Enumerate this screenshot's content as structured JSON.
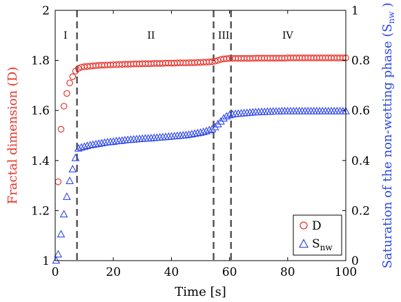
{
  "chart_data": {
    "type": "scatter",
    "xlabel": "Time [s]",
    "ylabel_left": "Fractal dimension (D)",
    "ylabel_right": "Saturation of the non-wetting phase (S",
    "ylabel_right_sub": "nw",
    "ylabel_right_close": " )",
    "xlim": [
      0,
      100
    ],
    "ylim_left": [
      1,
      2
    ],
    "ylim_right": [
      0,
      1
    ],
    "x_ticks": [
      "0",
      "20",
      "40",
      "60",
      "80",
      "100"
    ],
    "y_ticks_left": [
      "1",
      "1.2",
      "1.4",
      "1.6",
      "1.8",
      "2"
    ],
    "y_ticks_right": [
      "0",
      "0.2",
      "0.4",
      "0.6",
      "0.8",
      "1"
    ],
    "colors": {
      "D": "#e8322b",
      "Snw": "#2b45e8",
      "left_axis_label": "#e8322b",
      "right_axis_label": "#2b45e8",
      "divider": "#555555"
    },
    "dividers": [
      7.5,
      54.5,
      60.5
    ],
    "regions": [
      {
        "label": "I",
        "x": 3.5
      },
      {
        "label": "II",
        "x": 33
      },
      {
        "label": "III",
        "x": 58
      },
      {
        "label": "IV",
        "x": 80
      }
    ],
    "legend": {
      "position": "bottom-right",
      "entries": [
        {
          "label": "D",
          "sub": "",
          "marker": "circle"
        },
        {
          "label": "S",
          "sub": "nw",
          "marker": "triangle"
        }
      ]
    },
    "series": [
      {
        "name": "D",
        "axis": "left",
        "marker": "circle",
        "points": [
          [
            1,
            1.315
          ],
          [
            2,
            1.525
          ],
          [
            3,
            1.617
          ],
          [
            4,
            1.668
          ],
          [
            5,
            1.71
          ],
          [
            6,
            1.735
          ],
          [
            7,
            1.757
          ],
          [
            8,
            1.768
          ],
          [
            9,
            1.773
          ],
          [
            10,
            1.775
          ],
          [
            11,
            1.776
          ],
          [
            12,
            1.777
          ],
          [
            13,
            1.778
          ],
          [
            14,
            1.779
          ],
          [
            15,
            1.78
          ],
          [
            16,
            1.781
          ],
          [
            17,
            1.781
          ],
          [
            18,
            1.782
          ],
          [
            19,
            1.782
          ],
          [
            20,
            1.783
          ],
          [
            21,
            1.783
          ],
          [
            22,
            1.784
          ],
          [
            23,
            1.784
          ],
          [
            24,
            1.785
          ],
          [
            25,
            1.785
          ],
          [
            26,
            1.785
          ],
          [
            27,
            1.786
          ],
          [
            28,
            1.786
          ],
          [
            29,
            1.786
          ],
          [
            30,
            1.787
          ],
          [
            31,
            1.787
          ],
          [
            32,
            1.787
          ],
          [
            33,
            1.787
          ],
          [
            34,
            1.788
          ],
          [
            35,
            1.788
          ],
          [
            36,
            1.788
          ],
          [
            37,
            1.788
          ],
          [
            38,
            1.789
          ],
          [
            39,
            1.789
          ],
          [
            40,
            1.789
          ],
          [
            41,
            1.789
          ],
          [
            42,
            1.79
          ],
          [
            43,
            1.79
          ],
          [
            44,
            1.79
          ],
          [
            45,
            1.79
          ],
          [
            46,
            1.791
          ],
          [
            47,
            1.791
          ],
          [
            48,
            1.791
          ],
          [
            49,
            1.792
          ],
          [
            50,
            1.792
          ],
          [
            51,
            1.793
          ],
          [
            52,
            1.793
          ],
          [
            53,
            1.794
          ],
          [
            54,
            1.795
          ],
          [
            55,
            1.797
          ],
          [
            56,
            1.8
          ],
          [
            57,
            1.804
          ],
          [
            58,
            1.806
          ],
          [
            59,
            1.807
          ],
          [
            60,
            1.808
          ],
          [
            61,
            1.808
          ],
          [
            62,
            1.808
          ],
          [
            63,
            1.808
          ],
          [
            64,
            1.808
          ],
          [
            65,
            1.808
          ],
          [
            66,
            1.808
          ],
          [
            67,
            1.808
          ],
          [
            68,
            1.808
          ],
          [
            69,
            1.809
          ],
          [
            70,
            1.809
          ],
          [
            71,
            1.809
          ],
          [
            72,
            1.809
          ],
          [
            73,
            1.809
          ],
          [
            74,
            1.809
          ],
          [
            75,
            1.809
          ],
          [
            76,
            1.809
          ],
          [
            77,
            1.809
          ],
          [
            78,
            1.809
          ],
          [
            79,
            1.809
          ],
          [
            80,
            1.81
          ],
          [
            81,
            1.81
          ],
          [
            82,
            1.81
          ],
          [
            83,
            1.81
          ],
          [
            84,
            1.81
          ],
          [
            85,
            1.81
          ],
          [
            86,
            1.81
          ],
          [
            87,
            1.81
          ],
          [
            88,
            1.81
          ],
          [
            89,
            1.81
          ],
          [
            90,
            1.81
          ],
          [
            91,
            1.81
          ],
          [
            92,
            1.81
          ],
          [
            93,
            1.81
          ],
          [
            94,
            1.81
          ],
          [
            95,
            1.81
          ],
          [
            96,
            1.81
          ],
          [
            97,
            1.81
          ],
          [
            98,
            1.81
          ],
          [
            99,
            1.81
          ],
          [
            100,
            1.81
          ]
        ]
      },
      {
        "name": "Snw",
        "axis": "right",
        "marker": "triangle",
        "points": [
          [
            0.3,
            0.0
          ],
          [
            1,
            0.025
          ],
          [
            2,
            0.105
          ],
          [
            3,
            0.185
          ],
          [
            4,
            0.255
          ],
          [
            5,
            0.318
          ],
          [
            6,
            0.365
          ],
          [
            7,
            0.41
          ],
          [
            8,
            0.448
          ],
          [
            9,
            0.452
          ],
          [
            10,
            0.455
          ],
          [
            11,
            0.458
          ],
          [
            12,
            0.461
          ],
          [
            13,
            0.463
          ],
          [
            14,
            0.465
          ],
          [
            15,
            0.467
          ],
          [
            16,
            0.469
          ],
          [
            17,
            0.471
          ],
          [
            18,
            0.473
          ],
          [
            19,
            0.474
          ],
          [
            20,
            0.475
          ],
          [
            21,
            0.477
          ],
          [
            22,
            0.478
          ],
          [
            23,
            0.479
          ],
          [
            24,
            0.481
          ],
          [
            25,
            0.482
          ],
          [
            26,
            0.483
          ],
          [
            27,
            0.484
          ],
          [
            28,
            0.485
          ],
          [
            29,
            0.486
          ],
          [
            30,
            0.487
          ],
          [
            31,
            0.488
          ],
          [
            32,
            0.488
          ],
          [
            33,
            0.489
          ],
          [
            34,
            0.49
          ],
          [
            35,
            0.491
          ],
          [
            36,
            0.492
          ],
          [
            37,
            0.493
          ],
          [
            38,
            0.494
          ],
          [
            39,
            0.495
          ],
          [
            40,
            0.496
          ],
          [
            41,
            0.497
          ],
          [
            42,
            0.498
          ],
          [
            43,
            0.499
          ],
          [
            44,
            0.5
          ],
          [
            45,
            0.501
          ],
          [
            46,
            0.503
          ],
          [
            47,
            0.505
          ],
          [
            48,
            0.507
          ],
          [
            49,
            0.509
          ],
          [
            50,
            0.511
          ],
          [
            51,
            0.514
          ],
          [
            52,
            0.517
          ],
          [
            53,
            0.521
          ],
          [
            54,
            0.525
          ],
          [
            55,
            0.533
          ],
          [
            56,
            0.545
          ],
          [
            57,
            0.556
          ],
          [
            58,
            0.568
          ],
          [
            59,
            0.576
          ],
          [
            60,
            0.581
          ],
          [
            61,
            0.584
          ],
          [
            62,
            0.586
          ],
          [
            63,
            0.587
          ],
          [
            64,
            0.588
          ],
          [
            65,
            0.589
          ],
          [
            66,
            0.59
          ],
          [
            67,
            0.591
          ],
          [
            68,
            0.592
          ],
          [
            69,
            0.593
          ],
          [
            70,
            0.593
          ],
          [
            71,
            0.594
          ],
          [
            72,
            0.594
          ],
          [
            73,
            0.595
          ],
          [
            74,
            0.595
          ],
          [
            75,
            0.596
          ],
          [
            76,
            0.596
          ],
          [
            77,
            0.596
          ],
          [
            78,
            0.597
          ],
          [
            79,
            0.597
          ],
          [
            80,
            0.597
          ],
          [
            81,
            0.597
          ],
          [
            82,
            0.597
          ],
          [
            83,
            0.597
          ],
          [
            84,
            0.597
          ],
          [
            85,
            0.597
          ],
          [
            86,
            0.597
          ],
          [
            87,
            0.597
          ],
          [
            88,
            0.597
          ],
          [
            89,
            0.597
          ],
          [
            90,
            0.597
          ],
          [
            91,
            0.597
          ],
          [
            92,
            0.597
          ],
          [
            93,
            0.597
          ],
          [
            94,
            0.597
          ],
          [
            95,
            0.597
          ],
          [
            96,
            0.597
          ],
          [
            97,
            0.597
          ],
          [
            98,
            0.597
          ],
          [
            99,
            0.597
          ],
          [
            100,
            0.597
          ]
        ]
      }
    ]
  }
}
